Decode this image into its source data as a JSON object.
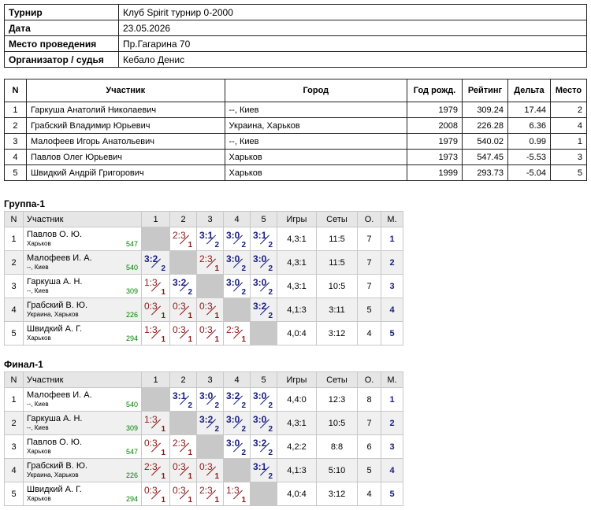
{
  "info": [
    {
      "label": "Турнир",
      "value": "Клуб Spirit турнир 0-2000"
    },
    {
      "label": "Дата",
      "value": "23.05.2026"
    },
    {
      "label": "Место проведения",
      "value": "Пр.Гагарина 70"
    },
    {
      "label": "Организатор / судья",
      "value": "Кебало Денис"
    }
  ],
  "participants": {
    "headers": [
      "N",
      "Участник",
      "Город",
      "Год рожд.",
      "Рейтинг",
      "Дельта",
      "Место"
    ],
    "rows": [
      [
        "1",
        "Гаркуша Анатолий Николаевич",
        "--, Киев",
        "1979",
        "309.24",
        "17.44",
        "2"
      ],
      [
        "2",
        "Грабский Владимир Юрьевич",
        "Украина, Харьков",
        "2008",
        "226.28",
        "6.36",
        "4"
      ],
      [
        "3",
        "Малофеев Игорь Анатольевич",
        "--, Киев",
        "1979",
        "540.02",
        "0.99",
        "1"
      ],
      [
        "4",
        "Павлов Олег Юрьевич",
        "Харьков",
        "1973",
        "547.45",
        "-5.53",
        "3"
      ],
      [
        "5",
        "Швидкий Андрій Григорович",
        "Харьков",
        "1999",
        "293.73",
        "-5.04",
        "5"
      ]
    ]
  },
  "groups": [
    {
      "title": "Группа-1",
      "headers": [
        "N",
        "Участник",
        "1",
        "2",
        "3",
        "4",
        "5",
        "Игры",
        "Сеты",
        "О.",
        "М."
      ],
      "rows": [
        {
          "n": "1",
          "name": "Павлов О. Ю.",
          "city": "Харьков",
          "rating": "547",
          "cells": [
            null,
            {
              "s": "2:3",
              "p": "1",
              "w": false
            },
            {
              "s": "3:1",
              "p": "2",
              "w": true
            },
            {
              "s": "3:0",
              "p": "2",
              "w": true
            },
            {
              "s": "3:1",
              "p": "2",
              "w": true
            }
          ],
          "games": "4,3:1",
          "sets": "11:5",
          "points": "7",
          "place": "1"
        },
        {
          "n": "2",
          "name": "Малофеев И. А.",
          "city": "--, Киев",
          "rating": "540",
          "cells": [
            {
              "s": "3:2",
              "p": "2",
              "w": true
            },
            null,
            {
              "s": "2:3",
              "p": "1",
              "w": false
            },
            {
              "s": "3:0",
              "p": "2",
              "w": true
            },
            {
              "s": "3:0",
              "p": "2",
              "w": true
            }
          ],
          "games": "4,3:1",
          "sets": "11:5",
          "points": "7",
          "place": "2"
        },
        {
          "n": "3",
          "name": "Гаркуша А. Н.",
          "city": "--, Киев",
          "rating": "309",
          "cells": [
            {
              "s": "1:3",
              "p": "1",
              "w": false
            },
            {
              "s": "3:2",
              "p": "2",
              "w": true
            },
            null,
            {
              "s": "3:0",
              "p": "2",
              "w": true
            },
            {
              "s": "3:0",
              "p": "2",
              "w": true
            }
          ],
          "games": "4,3:1",
          "sets": "10:5",
          "points": "7",
          "place": "3"
        },
        {
          "n": "4",
          "name": "Грабский В. Ю.",
          "city": "Украина, Харьков",
          "rating": "226",
          "cells": [
            {
              "s": "0:3",
              "p": "1",
              "w": false
            },
            {
              "s": "0:3",
              "p": "1",
              "w": false
            },
            {
              "s": "0:3",
              "p": "1",
              "w": false
            },
            null,
            {
              "s": "3:2",
              "p": "2",
              "w": true
            }
          ],
          "games": "4,1:3",
          "sets": "3:11",
          "points": "5",
          "place": "4"
        },
        {
          "n": "5",
          "name": "Швидкий А. Г.",
          "city": "Харьков",
          "rating": "294",
          "cells": [
            {
              "s": "1:3",
              "p": "1",
              "w": false
            },
            {
              "s": "0:3",
              "p": "1",
              "w": false
            },
            {
              "s": "0:3",
              "p": "1",
              "w": false
            },
            {
              "s": "2:3",
              "p": "1",
              "w": false
            },
            null
          ],
          "games": "4,0:4",
          "sets": "3:12",
          "points": "4",
          "place": "5"
        }
      ]
    },
    {
      "title": "Финал-1",
      "headers": [
        "N",
        "Участник",
        "1",
        "2",
        "3",
        "4",
        "5",
        "Игры",
        "Сеты",
        "О.",
        "М."
      ],
      "rows": [
        {
          "n": "1",
          "name": "Малофеев И. А.",
          "city": "--, Киев",
          "rating": "540",
          "cells": [
            null,
            {
              "s": "3:1",
              "p": "2",
              "w": true
            },
            {
              "s": "3:0",
              "p": "2",
              "w": true
            },
            {
              "s": "3:2",
              "p": "2",
              "w": true
            },
            {
              "s": "3:0",
              "p": "2",
              "w": true
            }
          ],
          "games": "4,4:0",
          "sets": "12:3",
          "points": "8",
          "place": "1"
        },
        {
          "n": "2",
          "name": "Гаркуша А. Н.",
          "city": "--, Киев",
          "rating": "309",
          "cells": [
            {
              "s": "1:3",
              "p": "1",
              "w": false
            },
            null,
            {
              "s": "3:2",
              "p": "2",
              "w": true
            },
            {
              "s": "3:0",
              "p": "2",
              "w": true
            },
            {
              "s": "3:0",
              "p": "2",
              "w": true
            }
          ],
          "games": "4,3:1",
          "sets": "10:5",
          "points": "7",
          "place": "2"
        },
        {
          "n": "3",
          "name": "Павлов О. Ю.",
          "city": "Харьков",
          "rating": "547",
          "cells": [
            {
              "s": "0:3",
              "p": "1",
              "w": false
            },
            {
              "s": "2:3",
              "p": "1",
              "w": false
            },
            null,
            {
              "s": "3:0",
              "p": "2",
              "w": true
            },
            {
              "s": "3:2",
              "p": "2",
              "w": true
            }
          ],
          "games": "4,2:2",
          "sets": "8:8",
          "points": "6",
          "place": "3"
        },
        {
          "n": "4",
          "name": "Грабский В. Ю.",
          "city": "Украина, Харьков",
          "rating": "226",
          "cells": [
            {
              "s": "2:3",
              "p": "1",
              "w": false
            },
            {
              "s": "0:3",
              "p": "1",
              "w": false
            },
            {
              "s": "0:3",
              "p": "1",
              "w": false
            },
            null,
            {
              "s": "3:1",
              "p": "2",
              "w": true
            }
          ],
          "games": "4,1:3",
          "sets": "5:10",
          "points": "5",
          "place": "4"
        },
        {
          "n": "5",
          "name": "Швидкий А. Г.",
          "city": "Харьков",
          "rating": "294",
          "cells": [
            {
              "s": "0:3",
              "p": "1",
              "w": false
            },
            {
              "s": "0:3",
              "p": "1",
              "w": false
            },
            {
              "s": "2:3",
              "p": "1",
              "w": false
            },
            {
              "s": "1:3",
              "p": "1",
              "w": false
            },
            null
          ],
          "games": "4,0:4",
          "sets": "3:12",
          "points": "4",
          "place": "5"
        }
      ]
    }
  ]
}
